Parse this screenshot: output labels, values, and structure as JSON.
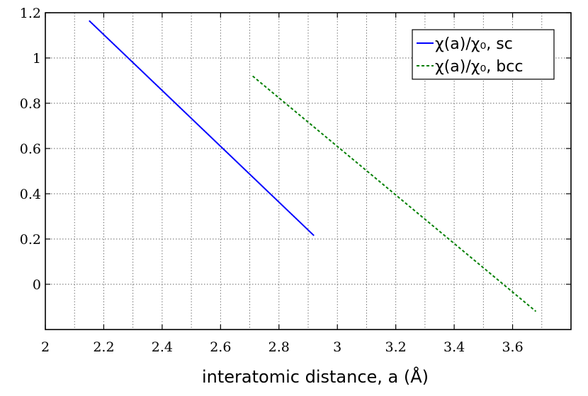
{
  "chart_data": {
    "type": "line",
    "title": "",
    "xlabel": "interatomic distance, a (Å)",
    "ylabel": "",
    "xlim": [
      2,
      3.8
    ],
    "ylim": [
      -0.2,
      1.2
    ],
    "xticks": [
      2,
      2.2,
      2.4,
      2.6,
      2.8,
      3,
      3.2,
      3.4,
      3.6
    ],
    "xtick_labels": [
      "2",
      "2.2",
      "2.4",
      "2.6",
      "2.8",
      "3",
      "3.2",
      "3.4",
      "3.6"
    ],
    "yticks": [
      0,
      0.2,
      0.4,
      0.6,
      0.8,
      1,
      1.2
    ],
    "ytick_labels": [
      "0",
      "0.2",
      "0.4",
      "0.6",
      "0.8",
      "1",
      "1.2"
    ],
    "grid": true,
    "legend_position": "top-right",
    "series": [
      {
        "name": "χ(a)/χ₀, sc",
        "color": "#0000ff",
        "linestyle": "solid",
        "x": [
          2.15,
          2.92
        ],
        "y": [
          1.165,
          0.215
        ]
      },
      {
        "name": "χ(a)/χ₀, bcc",
        "color": "#007f00",
        "linestyle": "dashed",
        "x": [
          2.71,
          3.68
        ],
        "y": [
          0.92,
          -0.12
        ]
      }
    ]
  }
}
